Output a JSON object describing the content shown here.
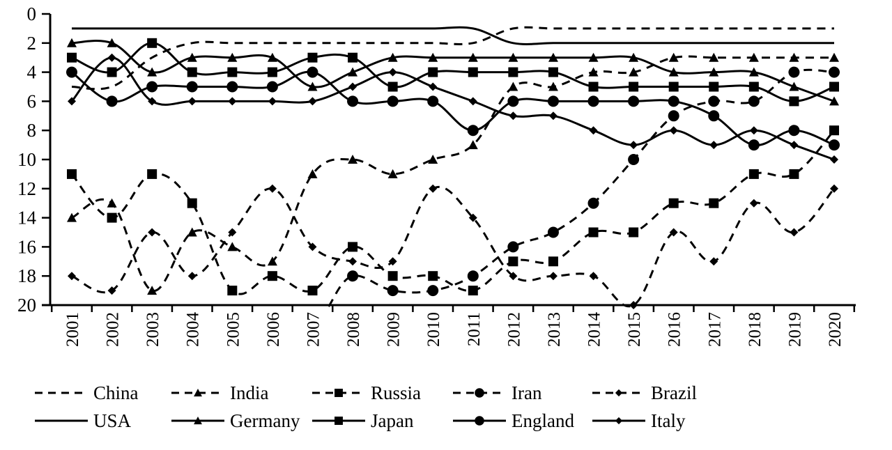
{
  "chart_data": {
    "type": "line",
    "title": "",
    "xlabel": "",
    "ylabel": "",
    "ylim": [
      0,
      20
    ],
    "y_inverted": true,
    "y_ticks": [
      0,
      2,
      4,
      6,
      8,
      10,
      12,
      14,
      16,
      18,
      20
    ],
    "grid": false,
    "legend_position": "bottom",
    "x": [
      "2001",
      "2002",
      "2003",
      "2004",
      "2005",
      "2006",
      "2007",
      "2008",
      "2009",
      "2010",
      "2011",
      "2012",
      "2013",
      "2014",
      "2015",
      "2016",
      "2017",
      "2018",
      "2019",
      "2020"
    ],
    "series": [
      {
        "name": "China",
        "line": "dashed",
        "marker": "none",
        "values": [
          5,
          5,
          3,
          2,
          2,
          2,
          2,
          2,
          2,
          2,
          2,
          1,
          1,
          1,
          1,
          1,
          1,
          1,
          1,
          1
        ]
      },
      {
        "name": "India",
        "line": "dashed",
        "marker": "triangle",
        "values": [
          14,
          13,
          19,
          15,
          16,
          17,
          11,
          10,
          11,
          10,
          9,
          5,
          5,
          4,
          4,
          3,
          3,
          3,
          3,
          3
        ]
      },
      {
        "name": "Russia",
        "line": "dashed",
        "marker": "square",
        "values": [
          11,
          14,
          11,
          13,
          19,
          18,
          19,
          16,
          18,
          18,
          19,
          17,
          17,
          15,
          15,
          13,
          13,
          11,
          11,
          8
        ]
      },
      {
        "name": "Iran",
        "line": "dashed",
        "marker": "circle",
        "values": [
          null,
          null,
          null,
          null,
          null,
          null,
          null,
          18,
          19,
          19,
          18,
          16,
          15,
          13,
          10,
          7,
          6,
          6,
          4,
          4
        ]
      },
      {
        "name": "Brazil",
        "line": "dashed",
        "marker": "diamond",
        "values": [
          18,
          19,
          15,
          18,
          15,
          12,
          16,
          17,
          17,
          12,
          14,
          18,
          18,
          18,
          20,
          15,
          17,
          13,
          15,
          12
        ]
      },
      {
        "name": "USA",
        "line": "solid",
        "marker": "none",
        "values": [
          1,
          1,
          1,
          1,
          1,
          1,
          1,
          1,
          1,
          1,
          1,
          2,
          2,
          2,
          2,
          2,
          2,
          2,
          2,
          2
        ]
      },
      {
        "name": "Germany",
        "line": "solid",
        "marker": "triangle",
        "values": [
          2,
          2,
          4,
          3,
          3,
          3,
          5,
          4,
          3,
          3,
          3,
          3,
          3,
          3,
          3,
          4,
          4,
          4,
          5,
          6
        ]
      },
      {
        "name": "Japan",
        "line": "solid",
        "marker": "square",
        "values": [
          3,
          4,
          2,
          4,
          4,
          4,
          3,
          3,
          5,
          4,
          4,
          4,
          4,
          5,
          5,
          5,
          5,
          5,
          6,
          5
        ]
      },
      {
        "name": "England",
        "line": "solid",
        "marker": "circle",
        "values": [
          4,
          6,
          5,
          5,
          5,
          5,
          4,
          6,
          6,
          6,
          8,
          6,
          6,
          6,
          6,
          6,
          7,
          9,
          8,
          9
        ]
      },
      {
        "name": "Italy",
        "line": "solid",
        "marker": "diamond",
        "values": [
          6,
          3,
          6,
          6,
          6,
          6,
          6,
          5,
          4,
          5,
          6,
          7,
          7,
          8,
          9,
          8,
          9,
          8,
          9,
          10
        ]
      }
    ]
  },
  "legend": {
    "row1": [
      "China",
      "India",
      "Russia",
      "Iran",
      "Brazil"
    ],
    "row2": [
      "USA",
      "Germany",
      "Japan",
      "England",
      "Italy"
    ]
  },
  "colors": {
    "ink": "#000000",
    "background": "#ffffff"
  }
}
